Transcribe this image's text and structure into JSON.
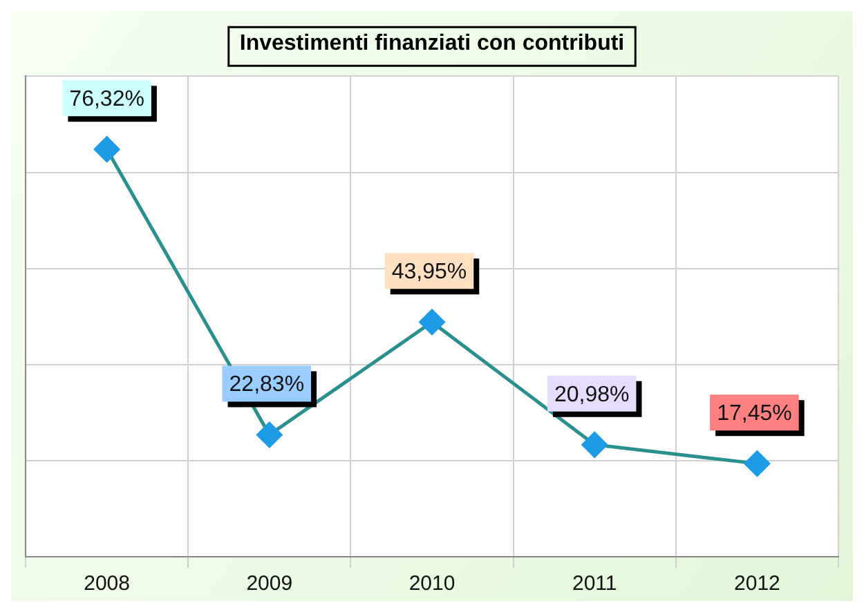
{
  "chart_data": {
    "type": "line",
    "title": "Investimenti finanziati con contributi",
    "categories": [
      "2008",
      "2009",
      "2010",
      "2011",
      "2012"
    ],
    "series": [
      {
        "color": "#1e9be6",
        "values": [
          76.32,
          22.83,
          43.95,
          20.98,
          17.45
        ],
        "value_labels": [
          "76,32%",
          "22,83%",
          "43,95%",
          "20,98%",
          "17,45%"
        ]
      }
    ],
    "ylim": [
      0,
      90
    ],
    "yticks": [
      {
        "value": 0,
        "label": null
      },
      {
        "value": 18,
        "label": null
      },
      {
        "value": 36,
        "label": null
      },
      {
        "value": 54,
        "label": null
      },
      {
        "value": 72,
        "label": null
      },
      {
        "value": 90,
        "label": null
      }
    ],
    "tick_labels": "x",
    "grid": true,
    "legend": false,
    "marker": "diamond",
    "line_style": "solid"
  }
}
